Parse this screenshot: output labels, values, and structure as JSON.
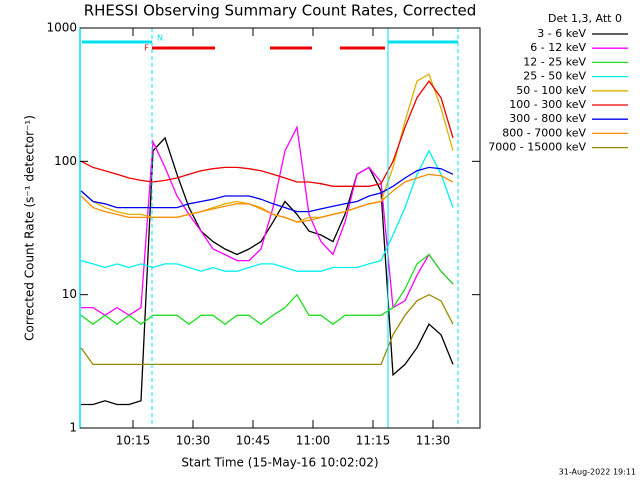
{
  "chart_data": {
    "type": "line",
    "title": "RHESSI Observing Summary Count Rates, Corrected",
    "legend_title": "Det 1,3, Att 0",
    "y_label": "Corrected Count Rate (s⁻¹ detector⁻¹)",
    "x_label": "Start Time (15-May-16 10:02:02)",
    "footer": "31-Aug-2022 19:11",
    "log_y": true,
    "ylim": [
      1,
      1000
    ],
    "yticks": [
      1,
      10,
      100,
      1000
    ],
    "xlim": [
      1.75,
      101.75
    ],
    "xticks": [
      {
        "value": 15,
        "label": "10:15"
      },
      {
        "value": 30,
        "label": "10:30"
      },
      {
        "value": 45,
        "label": "10:45"
      },
      {
        "value": 60,
        "label": "11:00"
      },
      {
        "value": 75,
        "label": "11:15"
      },
      {
        "value": 90,
        "label": "11:30"
      }
    ],
    "x": [
      2,
      5,
      8,
      11,
      14,
      17,
      20,
      23,
      26,
      29,
      32,
      35,
      38,
      41,
      44,
      47,
      50,
      53,
      56,
      59,
      62,
      65,
      68,
      71,
      74,
      77,
      80,
      83,
      86,
      89,
      92,
      95
    ],
    "series": [
      {
        "name": "3 - 6 keV",
        "color": "#000000",
        "values": [
          1.5,
          1.5,
          1.6,
          1.5,
          1.5,
          1.6,
          120,
          150,
          80,
          45,
          30,
          25,
          22,
          20,
          22,
          25,
          35,
          50,
          40,
          30,
          28,
          25,
          40,
          80,
          90,
          60,
          2.5,
          3,
          4,
          6,
          5,
          3
        ]
      },
      {
        "name": "6 - 12 keV",
        "color": "#ff00ff",
        "values": [
          8,
          8,
          7,
          8,
          7,
          8,
          140,
          90,
          55,
          40,
          30,
          22,
          20,
          18,
          18,
          22,
          45,
          120,
          180,
          40,
          25,
          20,
          35,
          80,
          90,
          70,
          8,
          9,
          14,
          20,
          15,
          12
        ]
      },
      {
        "name": "12 - 25 keV",
        "color": "#22dd22",
        "values": [
          7,
          6,
          7,
          6,
          7,
          6,
          7,
          7,
          7,
          6,
          7,
          7,
          6,
          7,
          7,
          6,
          7,
          8,
          10,
          7,
          7,
          6,
          7,
          7,
          7,
          7,
          8,
          11,
          17,
          20,
          15,
          12
        ]
      },
      {
        "name": "25 - 50 keV",
        "color": "#00f0f0",
        "values": [
          18,
          17,
          16,
          17,
          16,
          17,
          16,
          17,
          17,
          16,
          15,
          16,
          15,
          15,
          16,
          17,
          17,
          16,
          15,
          15,
          15,
          16,
          16,
          16,
          17,
          18,
          28,
          45,
          80,
          120,
          80,
          45
        ]
      },
      {
        "name": "50 - 100 keV",
        "color": "#e0b000",
        "values": [
          60,
          50,
          45,
          42,
          40,
          40,
          38,
          38,
          38,
          40,
          42,
          45,
          48,
          50,
          48,
          45,
          40,
          38,
          35,
          38,
          38,
          40,
          42,
          45,
          48,
          50,
          90,
          200,
          400,
          450,
          250,
          120
        ]
      },
      {
        "name": "100 - 300 keV",
        "color": "#ee0000",
        "values": [
          100,
          90,
          85,
          80,
          75,
          72,
          70,
          72,
          75,
          80,
          85,
          88,
          90,
          90,
          88,
          85,
          80,
          75,
          70,
          70,
          68,
          65,
          65,
          65,
          65,
          68,
          100,
          180,
          300,
          400,
          300,
          150
        ]
      },
      {
        "name": "300 - 800 keV",
        "color": "#0000ee",
        "values": [
          60,
          50,
          48,
          45,
          45,
          45,
          45,
          45,
          45,
          48,
          50,
          52,
          55,
          55,
          55,
          52,
          48,
          45,
          42,
          42,
          44,
          46,
          48,
          50,
          55,
          58,
          65,
          75,
          85,
          90,
          88,
          80
        ]
      },
      {
        "name": "800 - 7000 keV",
        "color": "#ff8c00",
        "values": [
          55,
          45,
          42,
          40,
          38,
          38,
          38,
          38,
          38,
          40,
          42,
          44,
          46,
          48,
          48,
          44,
          40,
          38,
          35,
          36,
          38,
          40,
          42,
          45,
          48,
          50,
          60,
          70,
          75,
          80,
          78,
          70
        ]
      },
      {
        "name": "7000 - 15000 keV",
        "color": "#9a8a00",
        "values": [
          4,
          3,
          3,
          3,
          3,
          3,
          3,
          3,
          3,
          3,
          3,
          3,
          3,
          3,
          3,
          3,
          3,
          3,
          3,
          3,
          3,
          3,
          3,
          3,
          3,
          3,
          5,
          7,
          9,
          10,
          9,
          6
        ]
      }
    ],
    "flags": [
      {
        "text": "F",
        "color": "#ee0000",
        "segments": [
          [
            19.75,
            35.5
          ],
          [
            49.25,
            59.75
          ],
          [
            66.75,
            78
          ]
        ]
      },
      {
        "text": "N",
        "color": "#00e0f0",
        "segments": [
          [
            2.25,
            19.75
          ],
          [
            78.75,
            96.25
          ]
        ]
      }
    ],
    "markers": [
      {
        "x": 19.75,
        "style": "dashed"
      },
      {
        "x": 78.75,
        "style": "solid"
      },
      {
        "x": 96.25,
        "style": "dashed"
      }
    ]
  }
}
